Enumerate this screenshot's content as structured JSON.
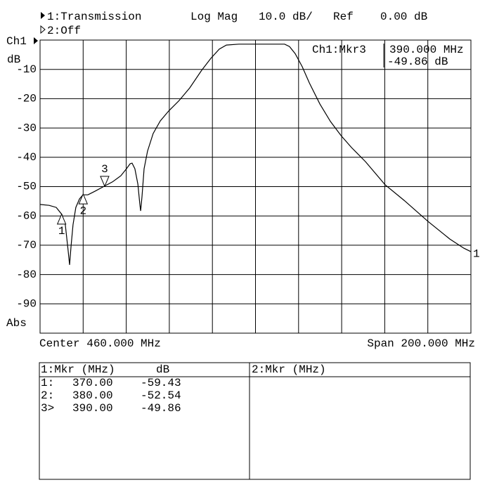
{
  "header": {
    "trace1": "1:Transmission",
    "format": "Log Mag",
    "scale": "10.0 dB/",
    "ref_label": "Ref",
    "ref_value": "0.00 dB",
    "trace2": "2:Off"
  },
  "chart_data": {
    "type": "line",
    "channel": "Ch1",
    "unit": "dB",
    "mode": "Abs",
    "color": "#000000",
    "xlim": [
      360,
      560
    ],
    "xticks": [
      360,
      380,
      400,
      420,
      440,
      460,
      480,
      500,
      520,
      540,
      560
    ],
    "ylim": [
      -100,
      0
    ],
    "yticks": [
      -10,
      -20,
      -30,
      -40,
      -50,
      -60,
      -70,
      -80,
      -90
    ],
    "grid": true,
    "trace_label": "1",
    "x": [
      360,
      364.2,
      367.5,
      370.1,
      371.7,
      373,
      373.7,
      374.4,
      375.3,
      376.6,
      378.3,
      379.9,
      382.2,
      385.4,
      389.7,
      393.6,
      397.5,
      400.1,
      401.8,
      402.7,
      404,
      405.4,
      406.3,
      406.7,
      407.3,
      408.3,
      409.9,
      412.5,
      415.8,
      419.7,
      424.6,
      429.5,
      435,
      439.3,
      443.2,
      446.5,
      452.3,
      465.4,
      473.5,
      475.8,
      478.4,
      481.7,
      485,
      489.9,
      494.8,
      499.7,
      504.6,
      511.1,
      520.2,
      529,
      540.1,
      550.2,
      556.7,
      560
    ],
    "values": [
      -56.1,
      -56.4,
      -57.1,
      -59.5,
      -63,
      -71.5,
      -76.7,
      -70.3,
      -63,
      -57.1,
      -54.2,
      -52.8,
      -52.8,
      -51.6,
      -49.9,
      -48.4,
      -46.3,
      -43.9,
      -42.2,
      -42,
      -43.9,
      -49.2,
      -55.9,
      -58.3,
      -53.5,
      -43.9,
      -37.9,
      -31.9,
      -27.6,
      -24.2,
      -20.6,
      -16.3,
      -10.3,
      -6.2,
      -3.1,
      -1.7,
      -1.4,
      -1.4,
      -1.4,
      -2.2,
      -4.6,
      -9.1,
      -14.6,
      -21.8,
      -27.8,
      -32.6,
      -36.7,
      -41.5,
      -49.4,
      -54.7,
      -61.9,
      -67.9,
      -71,
      -72.2
    ],
    "markers": [
      {
        "label": "1",
        "x": 370,
        "y": -59.43,
        "active": false
      },
      {
        "label": "2",
        "x": 380,
        "y": -52.54,
        "active": false
      },
      {
        "label": "3",
        "x": 390,
        "y": -49.86,
        "active": true
      }
    ],
    "readout": {
      "title": "Ch1:Mkr3",
      "freq": "390.000 MHz",
      "value": "-49.86 dB"
    },
    "center": "Center 460.000 MHz",
    "span": "Span 200.000 MHz"
  },
  "table": {
    "left_header": [
      "1:Mkr (MHz)",
      "dB"
    ],
    "right_header": "2:Mkr (MHz)",
    "rows": [
      [
        "1:",
        "370.00",
        "-59.43"
      ],
      [
        "2:",
        "380.00",
        "-52.54"
      ],
      [
        "3>",
        "390.00",
        "-49.86"
      ]
    ]
  }
}
